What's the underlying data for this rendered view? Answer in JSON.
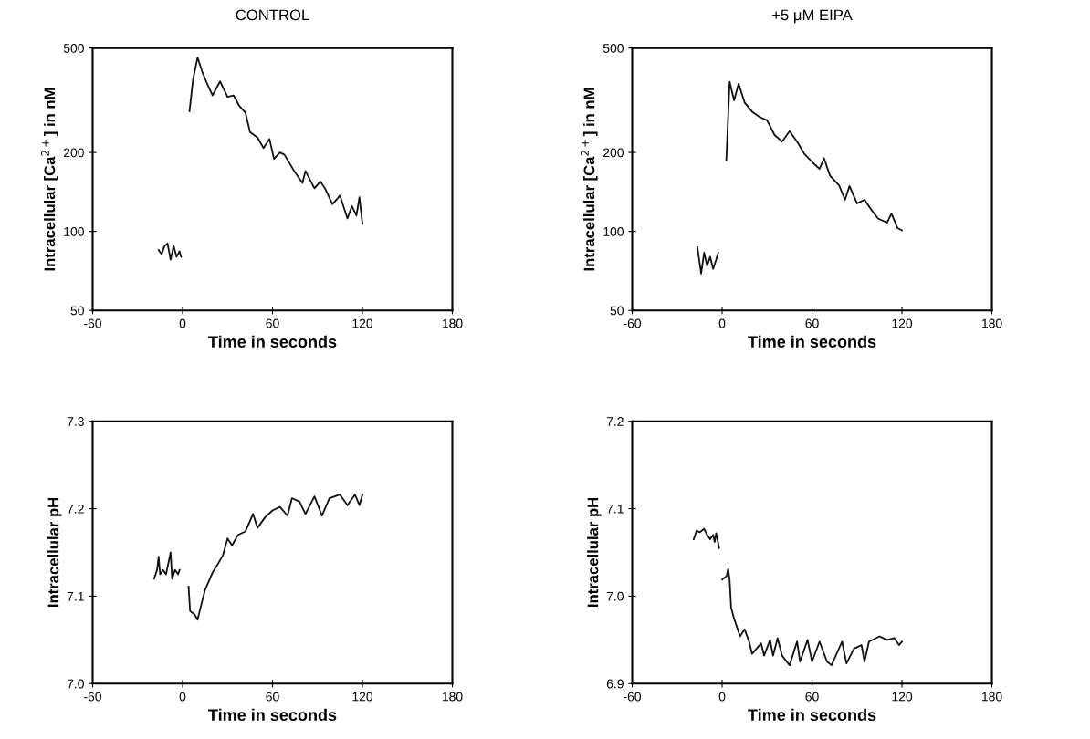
{
  "chart_data": [
    {
      "type": "line",
      "title": "CONTROL",
      "xlabel": "Time in seconds",
      "ylabel": "Intracellular [Ca$^{2+}$] in nM",
      "log": "y",
      "xlim": [
        -60,
        180
      ],
      "xticks": [
        -60,
        0,
        60,
        120,
        180
      ],
      "ylim": [
        50,
        500
      ],
      "yticks": [
        50,
        100,
        200,
        500
      ],
      "grid": false,
      "marker": "none",
      "line_style": "solid",
      "series": [
        {
          "color": "#111111",
          "x": [
            -16,
            -14,
            -12,
            -10,
            -8,
            -6,
            -4,
            -2,
            -1,
            1,
            4.6,
            7,
            10,
            13,
            16,
            20,
            25,
            30,
            34,
            38,
            42,
            45,
            50,
            54,
            58,
            61,
            65,
            68,
            75,
            80,
            82,
            88,
            92,
            95,
            100,
            105,
            110,
            113,
            116,
            118,
            120
          ],
          "values": [
            85,
            82,
            88,
            90,
            78,
            88,
            80,
            84,
            80,
            null,
            287,
            380,
            460,
            408,
            370,
            330,
            373,
            326,
            330,
            300,
            283,
            239,
            228,
            208,
            225,
            189,
            200,
            196,
            168,
            153,
            170,
            146,
            155,
            146,
            127,
            137,
            112,
            125,
            115,
            135,
            107
          ]
        }
      ]
    },
    {
      "type": "line",
      "title": "+5 μM EIPA",
      "xlabel": "Time in seconds",
      "ylabel": "Intracellular [Ca$^{2+}$] in nM",
      "log": "y",
      "xlim": [
        -60,
        180
      ],
      "xticks": [
        -60,
        0,
        60,
        120,
        180
      ],
      "ylim": [
        50,
        500
      ],
      "yticks": [
        50,
        100,
        200,
        500
      ],
      "grid": false,
      "marker": "none",
      "line_style": "solid",
      "series": [
        {
          "color": "#111111",
          "x": [
            -16.5,
            -14,
            -12,
            -10,
            -8,
            -6,
            -4,
            -2.6,
            0,
            2.8,
            5,
            8,
            11,
            15,
            20,
            25,
            30,
            35,
            40,
            45,
            50,
            55,
            60,
            65,
            68,
            72,
            78,
            82,
            85,
            90,
            95,
            100,
            104,
            110,
            113,
            117,
            120
          ],
          "values": [
            87,
            69,
            83,
            74,
            80,
            72,
            78,
            83,
            null,
            187,
            372,
            316,
            366,
            310,
            286,
            273,
            265,
            233,
            220,
            241,
            220,
            197,
            184,
            173,
            190,
            163,
            150,
            132,
            149,
            128,
            132,
            120,
            112,
            108,
            117,
            103,
            101
          ]
        }
      ]
    },
    {
      "type": "line",
      "xlabel": "Time in seconds",
      "ylabel": "Intracellular pH",
      "xlim": [
        -60,
        180
      ],
      "xticks": [
        -60,
        0,
        60,
        120,
        180
      ],
      "ylim": [
        7.0,
        7.3
      ],
      "yticks": [
        {
          "value": 7.0,
          "label": "7.0"
        },
        7.1,
        7.2,
        7.3
      ],
      "grid": false,
      "marker": "none",
      "line_style": "solid",
      "series": [
        {
          "color": "#111111",
          "x": [
            -19,
            -17,
            -16,
            -15,
            -13,
            -11,
            -8,
            -7,
            -5,
            -3,
            -2,
            1,
            4,
            5,
            8,
            10,
            12,
            15,
            20,
            23,
            27,
            30,
            33,
            37,
            42,
            47,
            50,
            55,
            60,
            65,
            70,
            73,
            78,
            82,
            88,
            93,
            98,
            105,
            110,
            115,
            118,
            120
          ],
          "values": [
            7.12,
            7.13,
            7.145,
            7.125,
            7.13,
            7.125,
            7.15,
            7.12,
            7.13,
            7.125,
            7.13,
            null,
            7.111,
            7.083,
            7.079,
            7.073,
            7.087,
            7.107,
            7.127,
            7.135,
            7.147,
            7.166,
            7.158,
            7.17,
            7.174,
            7.194,
            7.178,
            7.19,
            7.198,
            7.202,
            7.192,
            7.212,
            7.208,
            7.194,
            7.214,
            7.192,
            7.212,
            7.216,
            7.204,
            7.216,
            7.204,
            7.216
          ]
        }
      ]
    },
    {
      "type": "line",
      "xlabel": "Time in seconds",
      "ylabel": "Intracellular pH",
      "xlim": [
        -60,
        180
      ],
      "xticks": [
        -60,
        0,
        60,
        120,
        180
      ],
      "ylim": [
        6.9,
        7.2
      ],
      "yticks": [
        6.9,
        {
          "value": 7.0,
          "label": "7.0"
        },
        7.1,
        7.2
      ],
      "grid": false,
      "marker": "none",
      "line_style": "solid",
      "series": [
        {
          "color": "#111111",
          "x": [
            -19,
            -17,
            -15,
            -12,
            -10,
            -8,
            -6,
            -5,
            -4,
            -2,
            -1,
            0,
            3,
            4,
            5,
            6,
            8,
            10,
            12,
            15,
            18,
            20,
            23,
            26,
            28,
            32,
            34,
            37,
            40,
            45,
            50,
            52,
            57,
            60,
            65,
            70,
            73,
            80,
            83,
            88,
            93,
            95,
            98,
            105,
            110,
            115,
            118,
            120
          ],
          "values": [
            7.065,
            7.075,
            7.073,
            7.077,
            7.07,
            7.065,
            7.07,
            7.062,
            7.072,
            7.055,
            null,
            7.019,
            7.023,
            7.031,
            7.019,
            6.987,
            6.974,
            6.964,
            6.954,
            6.962,
            6.948,
            6.934,
            6.94,
            6.946,
            6.932,
            6.95,
            6.932,
            6.952,
            6.932,
            6.921,
            6.948,
            6.925,
            6.95,
            6.925,
            6.948,
            6.925,
            6.921,
            6.948,
            6.923,
            6.94,
            6.944,
            6.925,
            6.948,
            6.954,
            6.95,
            6.952,
            6.944,
            6.948
          ]
        }
      ]
    }
  ]
}
